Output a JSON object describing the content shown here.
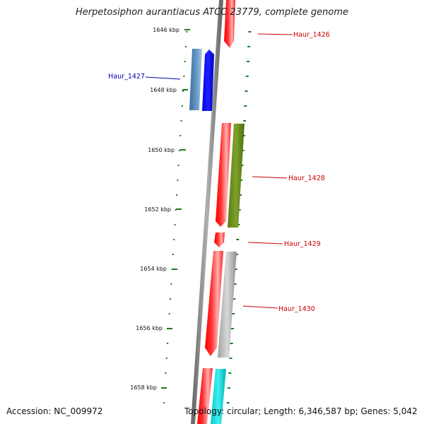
{
  "title": "Herpetosiphon aurantiacus ATCC 23779, complete genome",
  "footer": {
    "accession_label": "Accession: NC_009972",
    "summary_label": "Topology: circular; Length: 6,346,587 bp; Genes: 5,042"
  },
  "colors": {
    "backbone": "#808080",
    "tick": "#1e7a1e",
    "forward_gene": "#ff0000",
    "reverse_gene": "#0000ff",
    "label_forward": "#cc0000",
    "label_reverse": "#0000aa"
  },
  "kbp_ticks": [
    "1646 kbp",
    "1648 kbp",
    "1650 kbp",
    "1652 kbp",
    "1654 kbp",
    "1656 kbp",
    "1658 kbp"
  ],
  "genes": [
    {
      "id": "Haur_1426",
      "strand": "forward"
    },
    {
      "id": "Haur_1427",
      "strand": "reverse"
    },
    {
      "id": "Haur_1428",
      "strand": "forward"
    },
    {
      "id": "Haur_1429",
      "strand": "forward"
    },
    {
      "id": "Haur_1430",
      "strand": "forward"
    }
  ]
}
